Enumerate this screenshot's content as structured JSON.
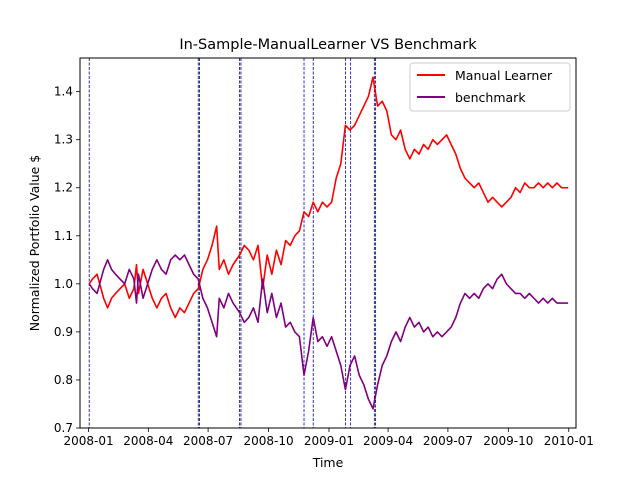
{
  "chart_data": {
    "type": "line",
    "title": "In-Sample-ManualLearner VS Benchmark",
    "xlabel": "Time",
    "ylabel": "Normalized Portfolio Value $",
    "x_range": [
      "2007-12-19",
      "2010-01-12"
    ],
    "ylim": [
      0.7,
      1.47
    ],
    "x_ticks": [
      "2008-01",
      "2008-04",
      "2008-07",
      "2008-10",
      "2009-01",
      "2009-04",
      "2009-07",
      "2009-10",
      "2010-01"
    ],
    "y_ticks": [
      "0.7",
      "0.8",
      "0.9",
      "1.0",
      "1.1",
      "1.2",
      "1.3",
      "1.4"
    ],
    "grid": false,
    "legend_position": "top-right",
    "vertical_markers": [
      {
        "date": "2008-01-02",
        "color": "#000080"
      },
      {
        "date": "2008-06-16",
        "color": "#000080"
      },
      {
        "date": "2008-06-18",
        "color": "#000080"
      },
      {
        "date": "2008-08-18",
        "color": "#000080"
      },
      {
        "date": "2008-08-20",
        "color": "#000080"
      },
      {
        "date": "2008-11-24",
        "color": "#0000cc"
      },
      {
        "date": "2008-12-08",
        "color": "#000080"
      },
      {
        "date": "2009-01-26",
        "color": "#0000cc"
      },
      {
        "date": "2009-02-03",
        "color": "#0000cc"
      },
      {
        "date": "2009-03-11",
        "color": "#000080"
      },
      {
        "date": "2009-03-13",
        "color": "#000080"
      }
    ],
    "series": [
      {
        "name": "Manual Learner",
        "color": "#ff0000",
        "points": [
          [
            "2008-01-02",
            1.0
          ],
          [
            "2008-01-07",
            1.01
          ],
          [
            "2008-01-14",
            1.02
          ],
          [
            "2008-01-18",
            1.0
          ],
          [
            "2008-01-24",
            0.97
          ],
          [
            "2008-01-30",
            0.95
          ],
          [
            "2008-02-05",
            0.97
          ],
          [
            "2008-02-11",
            0.98
          ],
          [
            "2008-02-18",
            0.99
          ],
          [
            "2008-02-25",
            1.0
          ],
          [
            "2008-03-03",
            0.97
          ],
          [
            "2008-03-10",
            0.99
          ],
          [
            "2008-03-14",
            1.04
          ],
          [
            "2008-03-17",
            0.98
          ],
          [
            "2008-03-24",
            1.03
          ],
          [
            "2008-03-31",
            1.0
          ],
          [
            "2008-04-07",
            0.97
          ],
          [
            "2008-04-14",
            0.95
          ],
          [
            "2008-04-21",
            0.97
          ],
          [
            "2008-04-28",
            0.98
          ],
          [
            "2008-05-05",
            0.95
          ],
          [
            "2008-05-12",
            0.93
          ],
          [
            "2008-05-19",
            0.95
          ],
          [
            "2008-05-26",
            0.94
          ],
          [
            "2008-06-02",
            0.96
          ],
          [
            "2008-06-09",
            0.98
          ],
          [
            "2008-06-16",
            0.99
          ],
          [
            "2008-06-23",
            1.03
          ],
          [
            "2008-06-30",
            1.05
          ],
          [
            "2008-07-07",
            1.08
          ],
          [
            "2008-07-14",
            1.12
          ],
          [
            "2008-07-18",
            1.03
          ],
          [
            "2008-07-25",
            1.05
          ],
          [
            "2008-08-01",
            1.02
          ],
          [
            "2008-08-08",
            1.04
          ],
          [
            "2008-08-18",
            1.06
          ],
          [
            "2008-08-25",
            1.08
          ],
          [
            "2008-09-01",
            1.07
          ],
          [
            "2008-09-08",
            1.05
          ],
          [
            "2008-09-15",
            1.08
          ],
          [
            "2008-09-22",
            0.99
          ],
          [
            "2008-09-29",
            1.06
          ],
          [
            "2008-10-06",
            1.02
          ],
          [
            "2008-10-13",
            1.07
          ],
          [
            "2008-10-20",
            1.04
          ],
          [
            "2008-10-27",
            1.09
          ],
          [
            "2008-11-03",
            1.08
          ],
          [
            "2008-11-10",
            1.1
          ],
          [
            "2008-11-17",
            1.11
          ],
          [
            "2008-11-24",
            1.15
          ],
          [
            "2008-12-01",
            1.14
          ],
          [
            "2008-12-08",
            1.17
          ],
          [
            "2008-12-15",
            1.15
          ],
          [
            "2008-12-22",
            1.17
          ],
          [
            "2008-12-29",
            1.16
          ],
          [
            "2009-01-05",
            1.17
          ],
          [
            "2009-01-12",
            1.22
          ],
          [
            "2009-01-19",
            1.25
          ],
          [
            "2009-01-26",
            1.33
          ],
          [
            "2009-02-02",
            1.32
          ],
          [
            "2009-02-09",
            1.33
          ],
          [
            "2009-02-16",
            1.35
          ],
          [
            "2009-02-23",
            1.37
          ],
          [
            "2009-03-02",
            1.39
          ],
          [
            "2009-03-09",
            1.43
          ],
          [
            "2009-03-16",
            1.37
          ],
          [
            "2009-03-23",
            1.38
          ],
          [
            "2009-03-30",
            1.36
          ],
          [
            "2009-04-06",
            1.31
          ],
          [
            "2009-04-13",
            1.3
          ],
          [
            "2009-04-20",
            1.32
          ],
          [
            "2009-04-27",
            1.28
          ],
          [
            "2009-05-04",
            1.26
          ],
          [
            "2009-05-11",
            1.28
          ],
          [
            "2009-05-18",
            1.27
          ],
          [
            "2009-05-25",
            1.29
          ],
          [
            "2009-06-01",
            1.28
          ],
          [
            "2009-06-08",
            1.3
          ],
          [
            "2009-06-15",
            1.29
          ],
          [
            "2009-06-22",
            1.3
          ],
          [
            "2009-06-29",
            1.31
          ],
          [
            "2009-07-06",
            1.29
          ],
          [
            "2009-07-13",
            1.27
          ],
          [
            "2009-07-20",
            1.24
          ],
          [
            "2009-07-27",
            1.22
          ],
          [
            "2009-08-03",
            1.21
          ],
          [
            "2009-08-10",
            1.2
          ],
          [
            "2009-08-17",
            1.21
          ],
          [
            "2009-08-24",
            1.19
          ],
          [
            "2009-08-31",
            1.17
          ],
          [
            "2009-09-07",
            1.18
          ],
          [
            "2009-09-14",
            1.17
          ],
          [
            "2009-09-21",
            1.16
          ],
          [
            "2009-09-28",
            1.17
          ],
          [
            "2009-10-05",
            1.18
          ],
          [
            "2009-10-12",
            1.2
          ],
          [
            "2009-10-19",
            1.19
          ],
          [
            "2009-10-26",
            1.21
          ],
          [
            "2009-11-02",
            1.2
          ],
          [
            "2009-11-09",
            1.2
          ],
          [
            "2009-11-16",
            1.21
          ],
          [
            "2009-11-23",
            1.2
          ],
          [
            "2009-11-30",
            1.21
          ],
          [
            "2009-12-07",
            1.2
          ],
          [
            "2009-12-14",
            1.21
          ],
          [
            "2009-12-21",
            1.2
          ],
          [
            "2009-12-31",
            1.2
          ]
        ]
      },
      {
        "name": "benchmark",
        "color": "#800080",
        "points": [
          [
            "2008-01-02",
            1.0
          ],
          [
            "2008-01-07",
            0.99
          ],
          [
            "2008-01-14",
            0.98
          ],
          [
            "2008-01-18",
            1.0
          ],
          [
            "2008-01-24",
            1.03
          ],
          [
            "2008-01-30",
            1.05
          ],
          [
            "2008-02-05",
            1.03
          ],
          [
            "2008-02-11",
            1.02
          ],
          [
            "2008-02-18",
            1.01
          ],
          [
            "2008-02-25",
            1.0
          ],
          [
            "2008-03-03",
            1.03
          ],
          [
            "2008-03-10",
            1.01
          ],
          [
            "2008-03-14",
            0.96
          ],
          [
            "2008-03-17",
            1.02
          ],
          [
            "2008-03-24",
            0.97
          ],
          [
            "2008-03-31",
            1.0
          ],
          [
            "2008-04-07",
            1.03
          ],
          [
            "2008-04-14",
            1.05
          ],
          [
            "2008-04-21",
            1.03
          ],
          [
            "2008-04-28",
            1.02
          ],
          [
            "2008-05-05",
            1.05
          ],
          [
            "2008-05-12",
            1.06
          ],
          [
            "2008-05-19",
            1.05
          ],
          [
            "2008-05-26",
            1.06
          ],
          [
            "2008-06-02",
            1.04
          ],
          [
            "2008-06-09",
            1.02
          ],
          [
            "2008-06-16",
            1.01
          ],
          [
            "2008-06-23",
            0.97
          ],
          [
            "2008-06-30",
            0.95
          ],
          [
            "2008-07-07",
            0.92
          ],
          [
            "2008-07-14",
            0.89
          ],
          [
            "2008-07-18",
            0.97
          ],
          [
            "2008-07-25",
            0.95
          ],
          [
            "2008-08-01",
            0.98
          ],
          [
            "2008-08-08",
            0.96
          ],
          [
            "2008-08-18",
            0.94
          ],
          [
            "2008-08-25",
            0.92
          ],
          [
            "2008-09-01",
            0.93
          ],
          [
            "2008-09-08",
            0.95
          ],
          [
            "2008-09-15",
            0.92
          ],
          [
            "2008-09-22",
            1.01
          ],
          [
            "2008-09-29",
            0.94
          ],
          [
            "2008-10-06",
            0.98
          ],
          [
            "2008-10-13",
            0.93
          ],
          [
            "2008-10-20",
            0.96
          ],
          [
            "2008-10-27",
            0.91
          ],
          [
            "2008-11-03",
            0.92
          ],
          [
            "2008-11-10",
            0.9
          ],
          [
            "2008-11-17",
            0.89
          ],
          [
            "2008-11-24",
            0.81
          ],
          [
            "2008-12-01",
            0.86
          ],
          [
            "2008-12-08",
            0.93
          ],
          [
            "2008-12-15",
            0.88
          ],
          [
            "2008-12-22",
            0.89
          ],
          [
            "2008-12-29",
            0.87
          ],
          [
            "2009-01-05",
            0.89
          ],
          [
            "2009-01-12",
            0.86
          ],
          [
            "2009-01-19",
            0.83
          ],
          [
            "2009-01-26",
            0.78
          ],
          [
            "2009-02-02",
            0.83
          ],
          [
            "2009-02-09",
            0.85
          ],
          [
            "2009-02-16",
            0.81
          ],
          [
            "2009-02-23",
            0.79
          ],
          [
            "2009-03-02",
            0.76
          ],
          [
            "2009-03-09",
            0.74
          ],
          [
            "2009-03-16",
            0.79
          ],
          [
            "2009-03-23",
            0.83
          ],
          [
            "2009-03-30",
            0.85
          ],
          [
            "2009-04-06",
            0.88
          ],
          [
            "2009-04-13",
            0.9
          ],
          [
            "2009-04-20",
            0.88
          ],
          [
            "2009-04-27",
            0.91
          ],
          [
            "2009-05-04",
            0.93
          ],
          [
            "2009-05-11",
            0.91
          ],
          [
            "2009-05-18",
            0.92
          ],
          [
            "2009-05-25",
            0.9
          ],
          [
            "2009-06-01",
            0.91
          ],
          [
            "2009-06-08",
            0.89
          ],
          [
            "2009-06-15",
            0.9
          ],
          [
            "2009-06-22",
            0.89
          ],
          [
            "2009-06-29",
            0.9
          ],
          [
            "2009-07-06",
            0.91
          ],
          [
            "2009-07-13",
            0.93
          ],
          [
            "2009-07-20",
            0.96
          ],
          [
            "2009-07-27",
            0.98
          ],
          [
            "2009-08-03",
            0.97
          ],
          [
            "2009-08-10",
            0.98
          ],
          [
            "2009-08-17",
            0.97
          ],
          [
            "2009-08-24",
            0.99
          ],
          [
            "2009-08-31",
            1.0
          ],
          [
            "2009-09-07",
            0.99
          ],
          [
            "2009-09-14",
            1.01
          ],
          [
            "2009-09-21",
            1.02
          ],
          [
            "2009-09-28",
            1.0
          ],
          [
            "2009-10-05",
            0.99
          ],
          [
            "2009-10-12",
            0.98
          ],
          [
            "2009-10-19",
            0.98
          ],
          [
            "2009-10-26",
            0.97
          ],
          [
            "2009-11-02",
            0.98
          ],
          [
            "2009-11-09",
            0.97
          ],
          [
            "2009-11-16",
            0.96
          ],
          [
            "2009-11-23",
            0.97
          ],
          [
            "2009-11-30",
            0.96
          ],
          [
            "2009-12-07",
            0.97
          ],
          [
            "2009-12-14",
            0.96
          ],
          [
            "2009-12-21",
            0.96
          ],
          [
            "2009-12-31",
            0.96
          ]
        ]
      }
    ]
  }
}
